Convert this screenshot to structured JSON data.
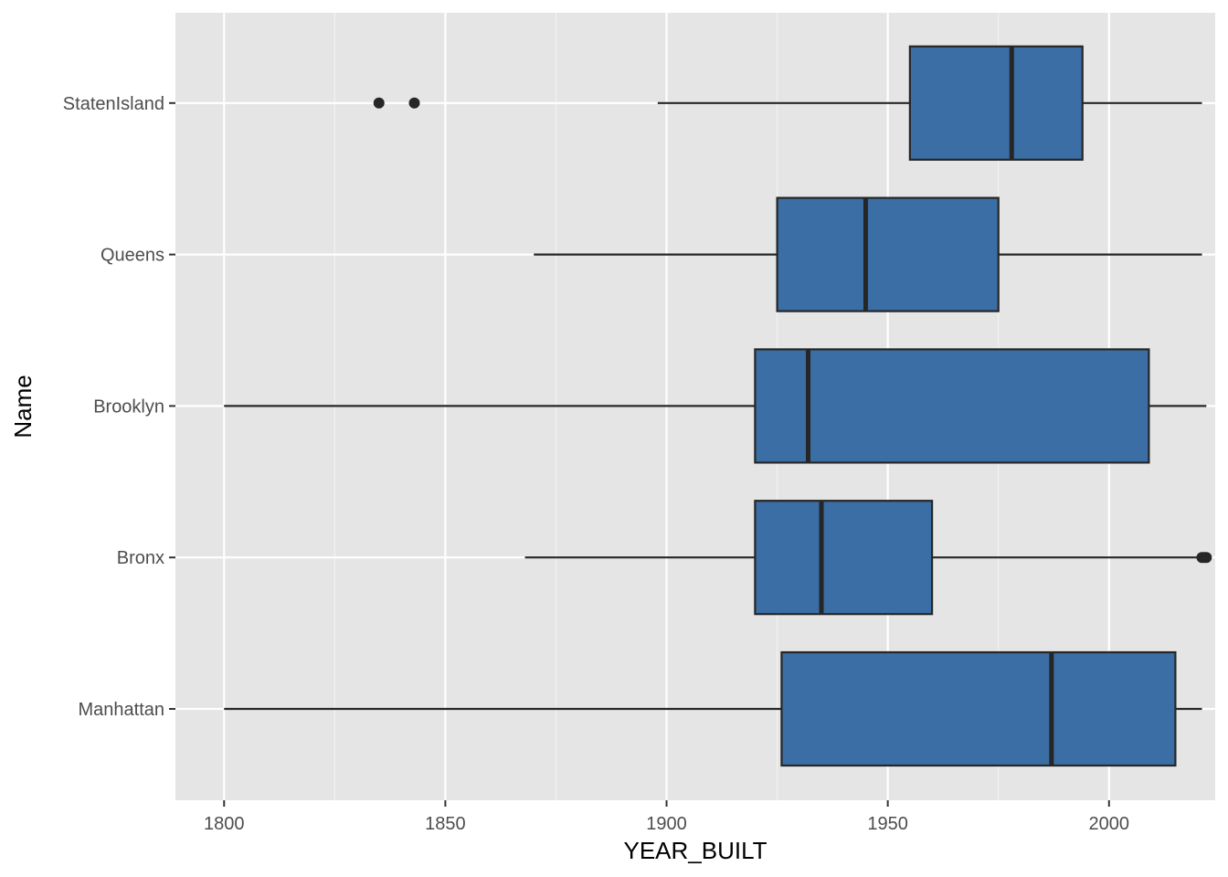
{
  "chart_data": {
    "type": "boxplot",
    "orientation": "horizontal",
    "xlabel": "YEAR_BUILT",
    "ylabel": "Name",
    "xlim": [
      1789,
      2024
    ],
    "x_ticks": [
      1800,
      1850,
      1900,
      1950,
      2000
    ],
    "categories": [
      "Manhattan",
      "Bronx",
      "Brooklyn",
      "Queens",
      "StatenIsland"
    ],
    "boxes": [
      {
        "name": "Manhattan",
        "whisker_low": 1800,
        "q1": 1926,
        "median": 1987,
        "q3": 2015,
        "whisker_high": 2021,
        "outliers": []
      },
      {
        "name": "Bronx",
        "whisker_low": 1868,
        "q1": 1920,
        "median": 1935,
        "q3": 1960,
        "whisker_high": 2020,
        "outliers": [
          2021,
          2021.5,
          2022
        ]
      },
      {
        "name": "Brooklyn",
        "whisker_low": 1800,
        "q1": 1920,
        "median": 1932,
        "q3": 2009,
        "whisker_high": 2022,
        "outliers": []
      },
      {
        "name": "Queens",
        "whisker_low": 1870,
        "q1": 1925,
        "median": 1945,
        "q3": 1975,
        "whisker_high": 2021,
        "outliers": []
      },
      {
        "name": "StatenIsland",
        "whisker_low": 1898,
        "q1": 1955,
        "median": 1978,
        "q3": 1994,
        "whisker_high": 2021,
        "outliers": [
          1835,
          1843
        ]
      }
    ],
    "grid": true,
    "legend": "none",
    "colors": {
      "panel_background": "#e5e5e5",
      "grid_major": "#ffffff",
      "box_fill": "#3a6ea5",
      "box_outline": "#262626"
    }
  }
}
